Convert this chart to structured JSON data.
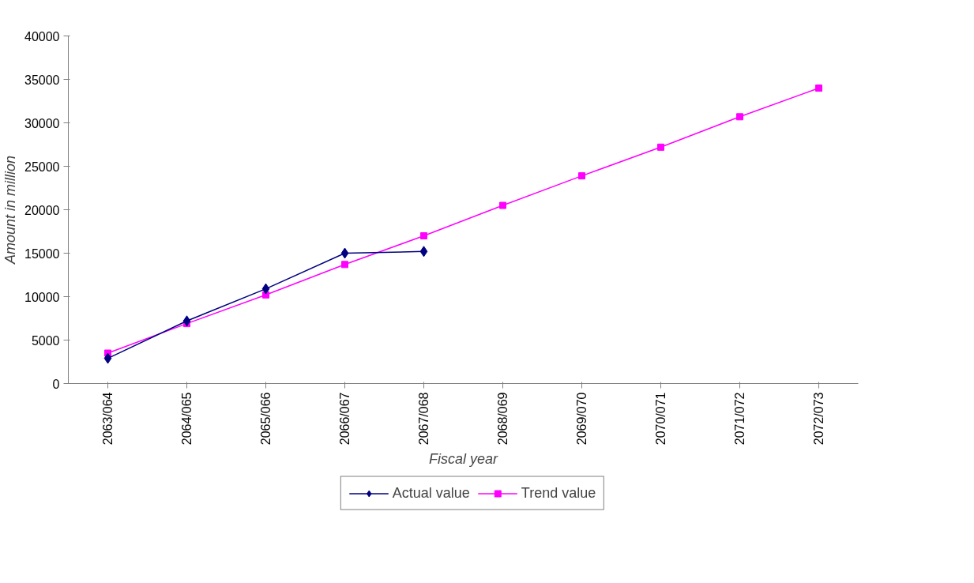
{
  "chart_data": {
    "type": "line",
    "xlabel": "Fiscal year",
    "ylabel": "Amount in million",
    "categories": [
      "2063/064",
      "2064/065",
      "2065/066",
      "2066/067",
      "2067/068",
      "2068/069",
      "2069/070",
      "2070/071",
      "2071/072",
      "2072/073"
    ],
    "series": [
      {
        "name": "Actual value",
        "color": "#000080",
        "marker": "diamond",
        "values": [
          2900,
          7200,
          10900,
          15000,
          15200,
          null,
          null,
          null,
          null,
          null
        ]
      },
      {
        "name": "Trend value",
        "color": "#ff00ff",
        "marker": "square",
        "values": [
          3500,
          6900,
          10200,
          13700,
          17000,
          20500,
          23900,
          27200,
          30700,
          34000
        ]
      }
    ],
    "ylim": [
      0,
      40000
    ],
    "yticks": [
      0,
      5000,
      10000,
      15000,
      20000,
      25000,
      30000,
      35000,
      40000
    ],
    "grid": false,
    "legend": "bottom",
    "line_style": "solid"
  }
}
